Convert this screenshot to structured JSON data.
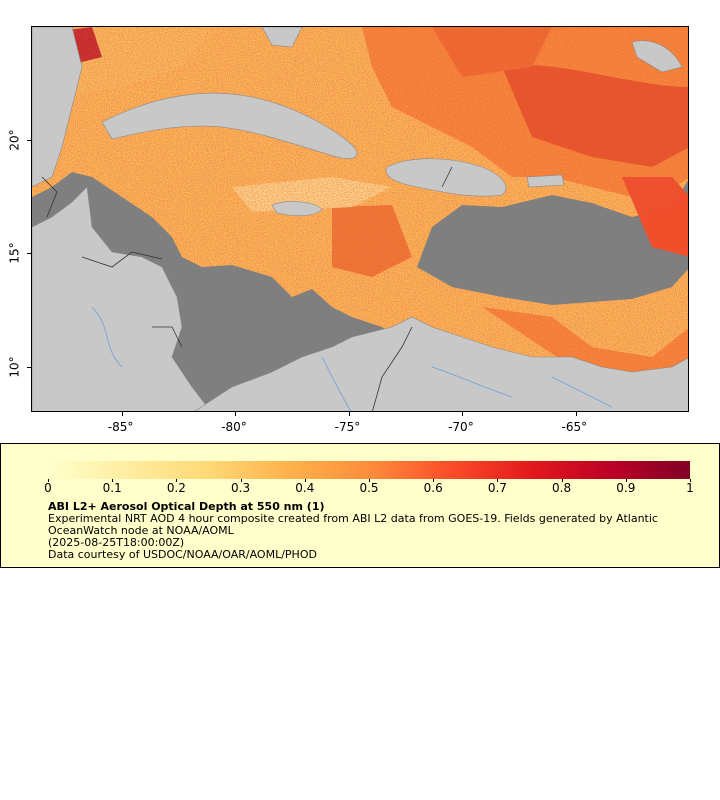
{
  "map": {
    "x_ticks": [
      {
        "label": "-85°",
        "lon": -85
      },
      {
        "label": "-80°",
        "lon": -80
      },
      {
        "label": "-75°",
        "lon": -75
      },
      {
        "label": "-70°",
        "lon": -70
      },
      {
        "label": "-65°",
        "lon": -65
      }
    ],
    "y_ticks": [
      {
        "label": "20°",
        "lat": 20
      },
      {
        "label": "15°",
        "lat": 15
      },
      {
        "label": "10°",
        "lat": 10
      }
    ],
    "lon_range": [
      -89,
      -60
    ],
    "lat_range": [
      8,
      25
    ],
    "colors": {
      "land": "#c8c8c8",
      "ocean_no_data": "#7f7f7f",
      "border": "#333333",
      "river": "#6f9fd8"
    }
  },
  "legend": {
    "ticks": [
      "0",
      "0.1",
      "0.2",
      "0.3",
      "0.4",
      "0.5",
      "0.6",
      "0.7",
      "0.8",
      "0.9",
      "1"
    ],
    "title": "ABI L2+ Aerosol Optical Depth at 550 nm (1)",
    "line1": "Experimental NRT AOD 4 hour composite created from ABI L2 data from GOES-19. Fields generated by Atlantic OceanWatch node at NOAA/AOML",
    "line2": "(2025-08-25T18:00:00Z)",
    "line3": "Data courtesy of USDOC/NOAA/OAR/AOML/PHOD",
    "colormap": [
      "#ffffcc",
      "#ffeda0",
      "#fed976",
      "#feb24c",
      "#fd8d3c",
      "#fc4e2a",
      "#e31a1c",
      "#bd0026",
      "#800026"
    ],
    "range": [
      0,
      1
    ]
  }
}
